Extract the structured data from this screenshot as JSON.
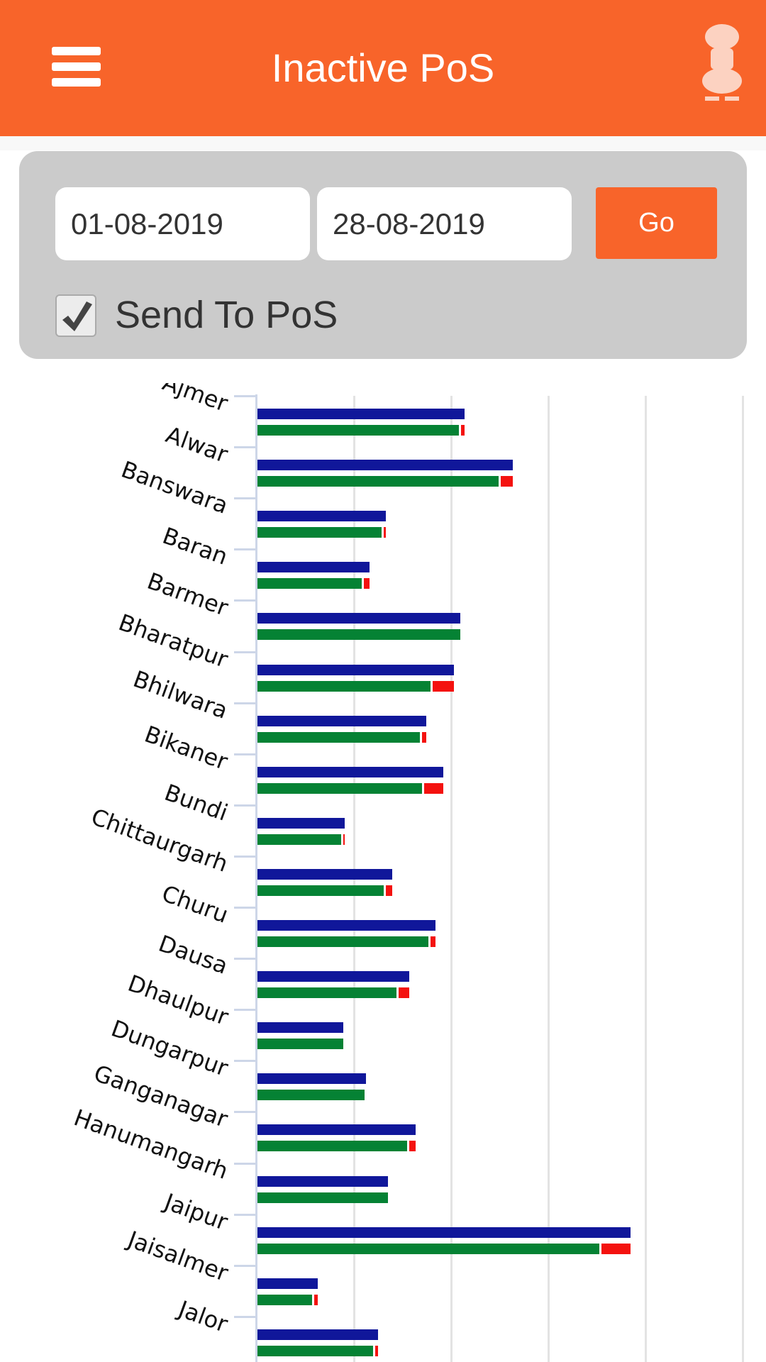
{
  "header": {
    "title": "Inactive PoS",
    "menu_icon": "hamburger-icon",
    "logo": "national-emblem"
  },
  "filters": {
    "from_date": "01-08-2019",
    "to_date": "28-08-2019",
    "go_label": "Go",
    "send_to_pos_label": "Send To PoS",
    "send_to_pos_checked": true
  },
  "colors": {
    "accent": "#f8642a",
    "series_total": "#10179a",
    "series_green": "#058234",
    "series_red": "#f4120f"
  },
  "chart_data": {
    "type": "bar",
    "orientation": "horizontal",
    "grid": true,
    "note_units": "relative; no tick labels shown",
    "categories": [
      "Ajmer",
      "Alwar",
      "Banswara",
      "Baran",
      "Barmer",
      "Bharatpur",
      "Bhilwara",
      "Bikaner",
      "Bundi",
      "Chittaurgarh",
      "Churu",
      "Dausa",
      "Dhaulpur",
      "Dungarpur",
      "Ganganagar",
      "Hanumangarh",
      "Jaipur",
      "Jaisalmer",
      "Jalor"
    ],
    "series": [
      {
        "color": "#10179a",
        "values": [
          213,
          263,
          132,
          115,
          209,
          202,
          174,
          191,
          90,
          139,
          183,
          156,
          88,
          112,
          163,
          134,
          384,
          62,
          124
        ]
      },
      {
        "color": "#058234",
        "stack": "b",
        "values": [
          207,
          248,
          128,
          107,
          209,
          178,
          167,
          169,
          86,
          130,
          176,
          143,
          88,
          110,
          154,
          134,
          352,
          56,
          119
        ]
      },
      {
        "color": "#f4120f",
        "stack": "b",
        "values": [
          6,
          15,
          4,
          8,
          0,
          24,
          7,
          22,
          4,
          9,
          7,
          13,
          0,
          0,
          9,
          0,
          32,
          6,
          5
        ]
      }
    ]
  }
}
